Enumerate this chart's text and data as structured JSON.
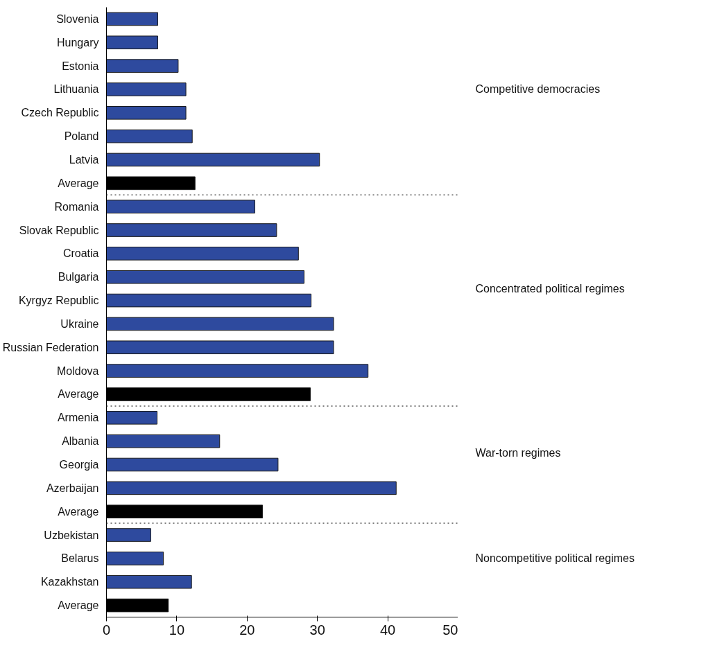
{
  "chart_data": {
    "type": "bar",
    "orientation": "horizontal",
    "categories": [
      "Slovenia",
      "Hungary",
      "Estonia",
      "Lithuania",
      "Czech Republic",
      "Poland",
      "Latvia",
      "Average",
      "Romania",
      "Slovak Republic",
      "Croatia",
      "Bulgaria",
      "Kyrgyz Republic",
      "Ukraine",
      "Russian Federation",
      "Moldova",
      "Average",
      "Armenia",
      "Albania",
      "Georgia",
      "Azerbaijan",
      "Average",
      "Uzbekistan",
      "Belarus",
      "Kazakhstan",
      "Average"
    ],
    "values": [
      7.3,
      7.3,
      10.2,
      11.3,
      11.3,
      12.2,
      30.3,
      12.6,
      21.1,
      24.2,
      27.3,
      28.1,
      29.1,
      32.3,
      32.3,
      37.2,
      29.0,
      7.2,
      16.1,
      24.4,
      41.2,
      22.2,
      6.3,
      8.1,
      12.1,
      8.8
    ],
    "colors": [
      "#2e4a9e",
      "#2e4a9e",
      "#2e4a9e",
      "#2e4a9e",
      "#2e4a9e",
      "#2e4a9e",
      "#2e4a9e",
      "#000000",
      "#2e4a9e",
      "#2e4a9e",
      "#2e4a9e",
      "#2e4a9e",
      "#2e4a9e",
      "#2e4a9e",
      "#2e4a9e",
      "#2e4a9e",
      "#000000",
      "#2e4a9e",
      "#2e4a9e",
      "#2e4a9e",
      "#2e4a9e",
      "#000000",
      "#2e4a9e",
      "#2e4a9e",
      "#2e4a9e",
      "#000000"
    ],
    "xlim": [
      0,
      50
    ],
    "xticks": [
      0,
      10,
      20,
      30,
      40,
      50
    ],
    "grid": false,
    "annotations": [
      "Competitive democracies",
      "Concentrated political regimes",
      "War-torn regimes",
      "Noncompetitive political regimes"
    ]
  }
}
